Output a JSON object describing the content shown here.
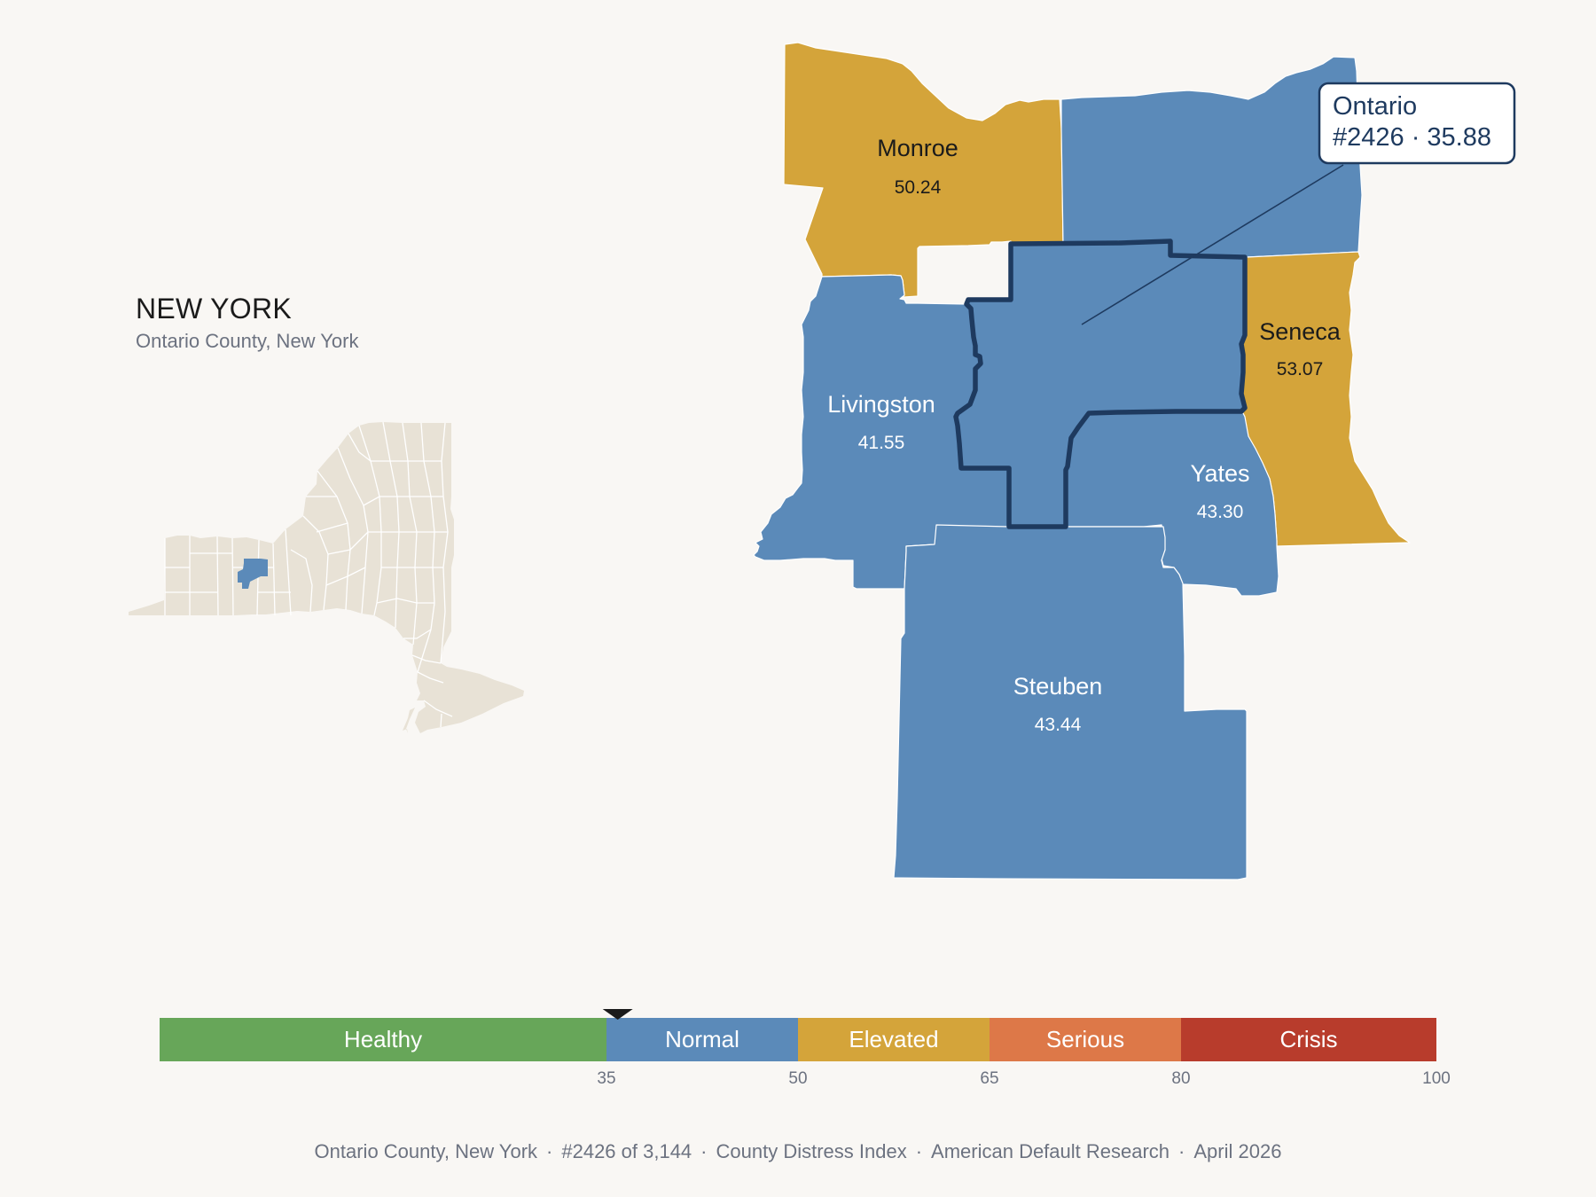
{
  "inset": {
    "state_name": "NEW YORK",
    "subtitle": "Ontario County, New York",
    "base_color": "#e8e2d6",
    "highlight_color": "#5b8ab9"
  },
  "map": {
    "stroke_color": "#ffffff",
    "highlight_outline_color": "#1e3a5f",
    "counties": [
      {
        "id": "monroe",
        "name": "Monroe",
        "value": "50.24",
        "category": "Elevated",
        "color": "#d4a43a",
        "text_color": "#1b1b1b"
      },
      {
        "id": "wayne",
        "name": "",
        "value": "",
        "category": "Normal",
        "color": "#5b8ab9",
        "text_color": "#ffffff"
      },
      {
        "id": "seneca",
        "name": "Seneca",
        "value": "53.07",
        "category": "Elevated",
        "color": "#d4a43a",
        "text_color": "#1b1b1b"
      },
      {
        "id": "livingston",
        "name": "Livingston",
        "value": "41.55",
        "category": "Normal",
        "color": "#5b8ab9",
        "text_color": "#ffffff"
      },
      {
        "id": "yates",
        "name": "Yates",
        "value": "43.30",
        "category": "Normal",
        "color": "#5b8ab9",
        "text_color": "#ffffff"
      },
      {
        "id": "steuben",
        "name": "Steuben",
        "value": "43.44",
        "category": "Normal",
        "color": "#5b8ab9",
        "text_color": "#ffffff"
      },
      {
        "id": "ontario",
        "name": "Ontario",
        "value": "35.88",
        "category": "Normal",
        "color": "#5b8ab9",
        "text_color": "#ffffff",
        "highlighted": true
      }
    ]
  },
  "callout": {
    "line1": "Ontario",
    "line2": "#2426 · 35.88",
    "text_color": "#1e3a5f"
  },
  "scale": {
    "min": 0,
    "max": 100,
    "marker_value": 35.88,
    "bands": [
      {
        "label": "Healthy",
        "from": 0,
        "to": 35,
        "color": "#67a659",
        "text_color": "#ffffff"
      },
      {
        "label": "Normal",
        "from": 35,
        "to": 50,
        "color": "#5b8ab9",
        "text_color": "#ffffff"
      },
      {
        "label": "Elevated",
        "from": 50,
        "to": 65,
        "color": "#d4a43a",
        "text_color": "#1b1b1b"
      },
      {
        "label": "Serious",
        "from": 65,
        "to": 80,
        "color": "#dd7848",
        "text_color": "#ffffff"
      },
      {
        "label": "Crisis",
        "from": 80,
        "to": 100,
        "color": "#b83c2c",
        "text_color": "#ffffff"
      }
    ],
    "ticks": [
      "35",
      "50",
      "65",
      "80",
      "100"
    ]
  },
  "footer": {
    "items": [
      "Ontario County, New York",
      "#2426 of 3,144",
      "County Distress Index",
      "American Default Research",
      "April 2026"
    ],
    "separator": "·"
  }
}
